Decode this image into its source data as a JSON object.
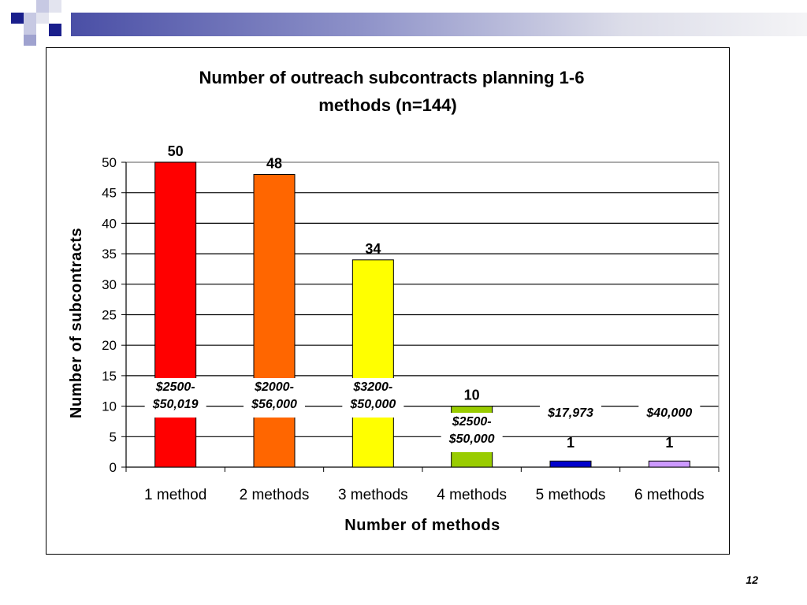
{
  "slide": {
    "number": "12"
  },
  "chart_data": {
    "type": "bar",
    "title": "Number of outreach subcontracts planning 1-6 methods (n=144)",
    "title_lines": [
      "Number of outreach subcontracts planning 1-6",
      "methods (n=144)"
    ],
    "xlabel": "Number of methods",
    "ylabel": "Number of subcontracts",
    "categories": [
      "1 method",
      "2 methods",
      "3 methods",
      "4 methods",
      "5 methods",
      "6 methods"
    ],
    "values": [
      50,
      48,
      34,
      10,
      1,
      1
    ],
    "data_labels": [
      "50",
      "48",
      "34",
      "10",
      "1",
      "1"
    ],
    "colors": [
      "#ff0000",
      "#ff6600",
      "#ffff00",
      "#99cc00",
      "#0000cc",
      "#cc99ff"
    ],
    "ylim": [
      0,
      50
    ],
    "yticks": [
      0,
      5,
      10,
      15,
      20,
      25,
      30,
      35,
      40,
      45,
      50
    ],
    "grid": true,
    "annotations": [
      {
        "category": "1 method",
        "lines": [
          "$2500-",
          "$50,019"
        ]
      },
      {
        "category": "2 methods",
        "lines": [
          "$2000-",
          "$56,000"
        ]
      },
      {
        "category": "3 methods",
        "lines": [
          "$3200-",
          "$50,000"
        ]
      },
      {
        "category": "4 methods",
        "lines": [
          "$2500-",
          "$50,000"
        ]
      },
      {
        "category": "5 methods",
        "lines": [
          "$17,973"
        ]
      },
      {
        "category": "6 methods",
        "lines": [
          "$40,000"
        ]
      }
    ]
  }
}
